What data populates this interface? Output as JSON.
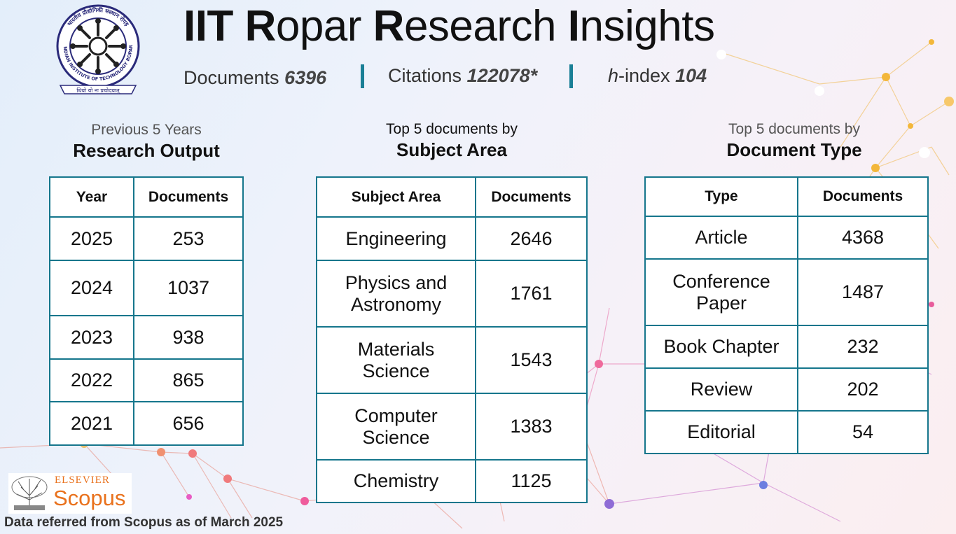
{
  "header": {
    "title": "IIT Ropar Research Insights",
    "stats": [
      {
        "label": "Documents",
        "value": "6396"
      },
      {
        "label": "Citations",
        "value": "122078*"
      },
      {
        "label": "h-index",
        "label_prefix": "h",
        "label_suffix": "-index",
        "value": "104"
      }
    ]
  },
  "logo": {
    "ring_text_top": "भारतीय प्रौद्योगिकी संस्थान रोपड़",
    "ring_text_bottom": "INDIAN INSTITUTE OF TECHNOLOGY ROPAR",
    "motto": "धियो यो नः प्रचोदयात्"
  },
  "research_output": {
    "subtitle": "Previous 5 Years",
    "title": "Research Output",
    "columns": [
      "Year",
      "Documents"
    ],
    "rows": [
      [
        "2025",
        "253"
      ],
      [
        "2024",
        "1037"
      ],
      [
        "2023",
        "938"
      ],
      [
        "2022",
        "865"
      ],
      [
        "2021",
        "656"
      ]
    ]
  },
  "subject_area": {
    "subtitle": "Top 5 documents by",
    "title": "Subject Area",
    "columns": [
      "Subject Area",
      "Documents"
    ],
    "rows": [
      [
        "Engineering",
        "2646"
      ],
      [
        "Physics and Astronomy",
        "1761"
      ],
      [
        "Materials Science",
        "1543"
      ],
      [
        "Computer Science",
        "1383"
      ],
      [
        "Chemistry",
        "1125"
      ]
    ]
  },
  "document_type": {
    "subtitle": "Top 5 documents by",
    "title": "Document Type",
    "columns": [
      "Type",
      "Documents"
    ],
    "rows": [
      [
        "Article",
        "4368"
      ],
      [
        "Conference Paper",
        "1487"
      ],
      [
        "Book Chapter",
        "232"
      ],
      [
        "Review",
        "202"
      ],
      [
        "Editorial",
        "54"
      ]
    ]
  },
  "scopus": {
    "publisher": "ELSEVIER",
    "brand": "Scopus"
  },
  "footer": "Data referred from Scopus as of March 2025",
  "colors": {
    "table_border": "#15768c",
    "separator": "#1a7f96",
    "scopus_orange": "#e9711c"
  }
}
